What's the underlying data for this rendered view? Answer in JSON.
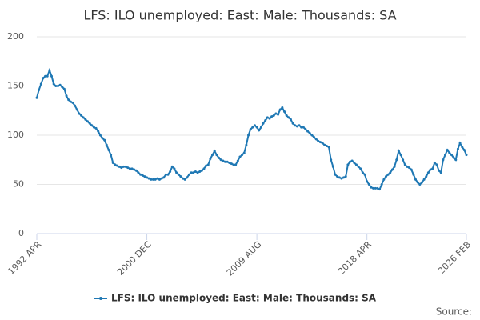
{
  "chart_data": {
    "type": "line",
    "title": "LFS: ILO unemployed: East: Male: Thousands: SA",
    "source_label": "Source:",
    "categories": [
      "1992 APR",
      null,
      null,
      null,
      null,
      null,
      null,
      null,
      null,
      null,
      null,
      null,
      null,
      null,
      null,
      null,
      null,
      null,
      null,
      null,
      null,
      null,
      null,
      null,
      null,
      null,
      null,
      null,
      null,
      null,
      null,
      null,
      null,
      null,
      null,
      null,
      null,
      null,
      null,
      null,
      null,
      null,
      null,
      null,
      null,
      null,
      null,
      null,
      null,
      null,
      null,
      null,
      "2000 DEC",
      null,
      null,
      null,
      null,
      null,
      null,
      null,
      null,
      null,
      null,
      null,
      null,
      null,
      null,
      null,
      null,
      null,
      null,
      null,
      null,
      null,
      null,
      null,
      null,
      null,
      null,
      null,
      null,
      null,
      null,
      null,
      null,
      null,
      null,
      null,
      null,
      null,
      null,
      null,
      null,
      null,
      null,
      null,
      null,
      null,
      null,
      null,
      null,
      null,
      null,
      null,
      "2009 AUG",
      null,
      null,
      null,
      null,
      null,
      null,
      null,
      null,
      null,
      null,
      null,
      null,
      null,
      null,
      null,
      null,
      null,
      null,
      null,
      null,
      null,
      null,
      null,
      null,
      null,
      null,
      null,
      null,
      null,
      null,
      null,
      null,
      null,
      null,
      null,
      null,
      null,
      null,
      null,
      null,
      null,
      null,
      null,
      null,
      null,
      null,
      null,
      null,
      null,
      null,
      null,
      "2018 APR",
      null,
      null,
      null,
      null,
      null,
      null,
      null,
      null,
      null,
      null,
      null,
      null,
      null,
      null,
      null,
      null,
      null,
      null,
      null,
      null,
      null,
      null,
      null,
      null,
      null,
      null,
      null,
      null,
      null,
      null,
      null,
      null,
      null,
      null,
      null,
      null,
      null,
      null,
      null,
      null,
      null,
      null,
      null,
      null,
      null,
      null,
      "2026 FEB"
    ],
    "series": [
      {
        "name": "LFS: ILO unemployed: East: Male: Thousands: SA",
        "color": "#1f78b4",
        "values": [
          138,
          146,
          152,
          158,
          160,
          160,
          166,
          160,
          152,
          150,
          150,
          151,
          149,
          147,
          140,
          136,
          134,
          133,
          130,
          126,
          122,
          120,
          118,
          116,
          114,
          112,
          110,
          108,
          107,
          104,
          100,
          97,
          95,
          90,
          85,
          80,
          72,
          70,
          69,
          68,
          67,
          68,
          68,
          67,
          66,
          66,
          65,
          64,
          62,
          60,
          59,
          58,
          57,
          56,
          55,
          55,
          55,
          56,
          55,
          56,
          57,
          60,
          60,
          63,
          68,
          66,
          62,
          60,
          58,
          56,
          55,
          57,
          60,
          62,
          62,
          63,
          62,
          63,
          64,
          66,
          69,
          70,
          76,
          80,
          84,
          80,
          77,
          75,
          74,
          73,
          73,
          72,
          71,
          70,
          70,
          74,
          78,
          80,
          82,
          90,
          100,
          106,
          108,
          110,
          108,
          105,
          108,
          112,
          115,
          118,
          117,
          119,
          120,
          122,
          121,
          126,
          128,
          124,
          120,
          118,
          116,
          112,
          110,
          109,
          110,
          108,
          108,
          106,
          104,
          102,
          100,
          98,
          96,
          94,
          93,
          92,
          90,
          89,
          88,
          75,
          68,
          60,
          58,
          57,
          56,
          57,
          58,
          70,
          73,
          74,
          72,
          70,
          68,
          66,
          62,
          60,
          53,
          50,
          47,
          46,
          46,
          46,
          45,
          50,
          55,
          58,
          60,
          62,
          65,
          68,
          75,
          84,
          80,
          75,
          70,
          68,
          67,
          65,
          60,
          55,
          52,
          50,
          52,
          55,
          58,
          62,
          65,
          66,
          72,
          70,
          64,
          62,
          75,
          80,
          85,
          82,
          80,
          77,
          75,
          86,
          92,
          88,
          85,
          80
        ]
      }
    ],
    "ylim": [
      0,
      200
    ],
    "yticks": [
      0,
      50,
      100,
      150,
      200
    ],
    "grid": true,
    "legend": "bottom"
  }
}
